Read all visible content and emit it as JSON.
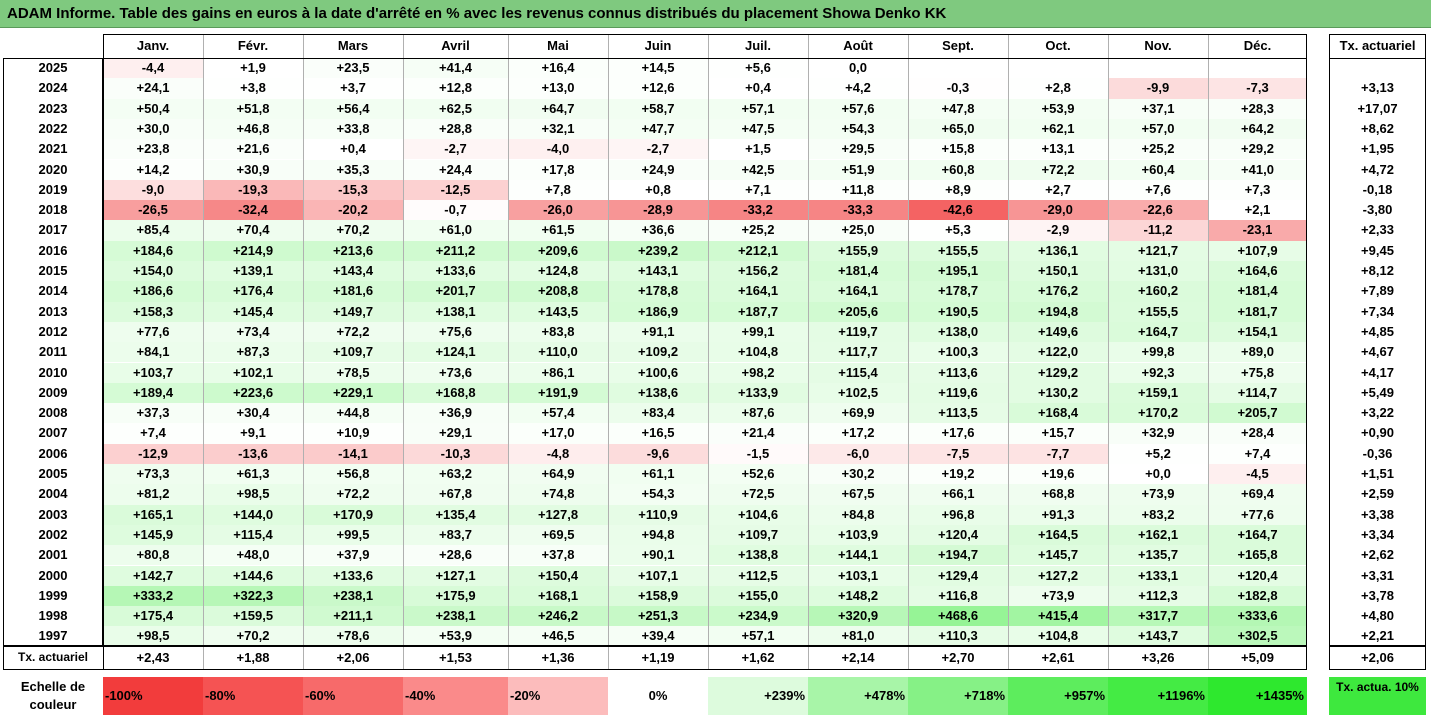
{
  "title": "ADAM Informe. Table des gains en euros à la date d'arrêté en % avec les revenus connus distribués du placement Showa Denko KK",
  "chart_data": {
    "type": "table",
    "months": [
      "Janv.",
      "Févr.",
      "Mars",
      "Avril",
      "Mai",
      "Juin",
      "Juil.",
      "Août",
      "Sept.",
      "Oct.",
      "Nov.",
      "Déc."
    ],
    "last_col_header": "Tx. actuariel",
    "rows": [
      {
        "year": "2025",
        "values": [
          "-4,4",
          "+1,9",
          "+23,5",
          "+41,4",
          "+16,4",
          "+14,5",
          "+5,6",
          "0,0",
          "",
          "",
          "",
          ""
        ],
        "rate": ""
      },
      {
        "year": "2024",
        "values": [
          "+24,1",
          "+3,8",
          "+3,7",
          "+12,8",
          "+13,0",
          "+12,6",
          "+0,4",
          "+4,2",
          "-0,3",
          "+2,8",
          "-9,9",
          "-7,3"
        ],
        "rate": "+3,13"
      },
      {
        "year": "2023",
        "values": [
          "+50,4",
          "+51,8",
          "+56,4",
          "+62,5",
          "+64,7",
          "+58,7",
          "+57,1",
          "+57,6",
          "+47,8",
          "+53,9",
          "+37,1",
          "+28,3"
        ],
        "rate": "+17,07"
      },
      {
        "year": "2022",
        "values": [
          "+30,0",
          "+46,8",
          "+33,8",
          "+28,8",
          "+32,1",
          "+47,7",
          "+47,5",
          "+54,3",
          "+65,0",
          "+62,1",
          "+57,0",
          "+64,2"
        ],
        "rate": "+8,62"
      },
      {
        "year": "2021",
        "values": [
          "+23,8",
          "+21,6",
          "+0,4",
          "-2,7",
          "-4,0",
          "-2,7",
          "+1,5",
          "+29,5",
          "+15,8",
          "+13,1",
          "+25,2",
          "+29,2"
        ],
        "rate": "+1,95"
      },
      {
        "year": "2020",
        "values": [
          "+14,2",
          "+30,9",
          "+35,3",
          "+24,4",
          "+17,8",
          "+24,9",
          "+42,5",
          "+51,9",
          "+60,8",
          "+72,2",
          "+60,4",
          "+41,0"
        ],
        "rate": "+4,72"
      },
      {
        "year": "2019",
        "values": [
          "-9,0",
          "-19,3",
          "-15,3",
          "-12,5",
          "+7,8",
          "+0,8",
          "+7,1",
          "+11,8",
          "+8,9",
          "+2,7",
          "+7,6",
          "+7,3"
        ],
        "rate": "-0,18"
      },
      {
        "year": "2018",
        "values": [
          "-26,5",
          "-32,4",
          "-20,2",
          "-0,7",
          "-26,0",
          "-28,9",
          "-33,2",
          "-33,3",
          "-42,6",
          "-29,0",
          "-22,6",
          "+2,1"
        ],
        "rate": "-3,80"
      },
      {
        "year": "2017",
        "values": [
          "+85,4",
          "+70,4",
          "+70,2",
          "+61,0",
          "+61,5",
          "+36,6",
          "+25,2",
          "+25,0",
          "+5,3",
          "-2,9",
          "-11,2",
          "-23,1"
        ],
        "rate": "+2,33"
      },
      {
        "year": "2016",
        "values": [
          "+184,6",
          "+214,9",
          "+213,6",
          "+211,2",
          "+209,6",
          "+239,2",
          "+212,1",
          "+155,9",
          "+155,5",
          "+136,1",
          "+121,7",
          "+107,9"
        ],
        "rate": "+9,45"
      },
      {
        "year": "2015",
        "values": [
          "+154,0",
          "+139,1",
          "+143,4",
          "+133,6",
          "+124,8",
          "+143,1",
          "+156,2",
          "+181,4",
          "+195,1",
          "+150,1",
          "+131,0",
          "+164,6"
        ],
        "rate": "+8,12"
      },
      {
        "year": "2014",
        "values": [
          "+186,6",
          "+176,4",
          "+181,6",
          "+201,7",
          "+208,8",
          "+178,8",
          "+164,1",
          "+164,1",
          "+178,7",
          "+176,2",
          "+160,2",
          "+181,4"
        ],
        "rate": "+7,89"
      },
      {
        "year": "2013",
        "values": [
          "+158,3",
          "+145,4",
          "+149,7",
          "+138,1",
          "+143,5",
          "+186,9",
          "+187,7",
          "+205,6",
          "+190,5",
          "+194,8",
          "+155,5",
          "+181,7"
        ],
        "rate": "+7,34"
      },
      {
        "year": "2012",
        "values": [
          "+77,6",
          "+73,4",
          "+72,2",
          "+75,6",
          "+83,8",
          "+91,1",
          "+99,1",
          "+119,7",
          "+138,0",
          "+149,6",
          "+164,7",
          "+154,1"
        ],
        "rate": "+4,85"
      },
      {
        "year": "2011",
        "values": [
          "+84,1",
          "+87,3",
          "+109,7",
          "+124,1",
          "+110,0",
          "+109,2",
          "+104,8",
          "+117,7",
          "+100,3",
          "+122,0",
          "+99,8",
          "+89,0"
        ],
        "rate": "+4,67"
      },
      {
        "year": "2010",
        "values": [
          "+103,7",
          "+102,1",
          "+78,5",
          "+73,6",
          "+86,1",
          "+100,6",
          "+98,2",
          "+115,4",
          "+113,6",
          "+129,2",
          "+92,3",
          "+75,8"
        ],
        "rate": "+4,17"
      },
      {
        "year": "2009",
        "values": [
          "+189,4",
          "+223,6",
          "+229,1",
          "+168,8",
          "+191,9",
          "+138,6",
          "+133,9",
          "+102,5",
          "+119,6",
          "+130,2",
          "+159,1",
          "+114,7"
        ],
        "rate": "+5,49"
      },
      {
        "year": "2008",
        "values": [
          "+37,3",
          "+30,4",
          "+44,8",
          "+36,9",
          "+57,4",
          "+83,4",
          "+87,6",
          "+69,9",
          "+113,5",
          "+168,4",
          "+170,2",
          "+205,7"
        ],
        "rate": "+3,22"
      },
      {
        "year": "2007",
        "values": [
          "+7,4",
          "+9,1",
          "+10,9",
          "+29,1",
          "+17,0",
          "+16,5",
          "+21,4",
          "+17,2",
          "+17,6",
          "+15,7",
          "+32,9",
          "+28,4"
        ],
        "rate": "+0,90"
      },
      {
        "year": "2006",
        "values": [
          "-12,9",
          "-13,6",
          "-14,1",
          "-10,3",
          "-4,8",
          "-9,6",
          "-1,5",
          "-6,0",
          "-7,5",
          "-7,7",
          "+5,2",
          "+7,4"
        ],
        "rate": "-0,36"
      },
      {
        "year": "2005",
        "values": [
          "+73,3",
          "+61,3",
          "+56,8",
          "+63,2",
          "+64,9",
          "+61,1",
          "+52,6",
          "+30,2",
          "+19,2",
          "+19,6",
          "+0,0",
          "-4,5"
        ],
        "rate": "+1,51"
      },
      {
        "year": "2004",
        "values": [
          "+81,2",
          "+98,5",
          "+72,2",
          "+67,8",
          "+74,8",
          "+54,3",
          "+72,5",
          "+67,5",
          "+66,1",
          "+68,8",
          "+73,9",
          "+69,4"
        ],
        "rate": "+2,59"
      },
      {
        "year": "2003",
        "values": [
          "+165,1",
          "+144,0",
          "+170,9",
          "+135,4",
          "+127,8",
          "+110,9",
          "+104,6",
          "+84,8",
          "+96,8",
          "+91,3",
          "+83,2",
          "+77,6"
        ],
        "rate": "+3,38"
      },
      {
        "year": "2002",
        "values": [
          "+145,9",
          "+115,4",
          "+99,5",
          "+83,7",
          "+69,5",
          "+94,8",
          "+109,7",
          "+103,9",
          "+120,4",
          "+164,5",
          "+162,1",
          "+164,7"
        ],
        "rate": "+3,34"
      },
      {
        "year": "2001",
        "values": [
          "+80,8",
          "+48,0",
          "+37,9",
          "+28,6",
          "+37,8",
          "+90,1",
          "+138,8",
          "+144,1",
          "+194,7",
          "+145,7",
          "+135,7",
          "+165,8"
        ],
        "rate": "+2,62"
      },
      {
        "year": "2000",
        "values": [
          "+142,7",
          "+144,6",
          "+133,6",
          "+127,1",
          "+150,4",
          "+107,1",
          "+112,5",
          "+103,1",
          "+129,4",
          "+127,2",
          "+133,1",
          "+120,4"
        ],
        "rate": "+3,31"
      },
      {
        "year": "1999",
        "values": [
          "+333,2",
          "+322,3",
          "+238,1",
          "+175,9",
          "+168,1",
          "+158,9",
          "+155,0",
          "+148,2",
          "+116,8",
          "+73,9",
          "+112,3",
          "+182,8"
        ],
        "rate": "+3,78"
      },
      {
        "year": "1998",
        "values": [
          "+175,4",
          "+159,5",
          "+211,1",
          "+238,1",
          "+246,2",
          "+251,3",
          "+234,9",
          "+320,9",
          "+468,6",
          "+415,4",
          "+317,7",
          "+333,6"
        ],
        "rate": "+4,80"
      },
      {
        "year": "1997",
        "values": [
          "+98,5",
          "+70,2",
          "+78,6",
          "+53,9",
          "+46,5",
          "+39,4",
          "+57,1",
          "+81,0",
          "+110,3",
          "+104,8",
          "+143,7",
          "+302,5"
        ],
        "rate": "+2,21"
      }
    ],
    "footer": {
      "label": "Tx. actuariel",
      "values": [
        "+2,43",
        "+1,88",
        "+2,06",
        "+1,53",
        "+1,36",
        "+1,19",
        "+1,62",
        "+2,14",
        "+2,70",
        "+2,61",
        "+3,26",
        "+5,09"
      ],
      "overall": "+2,06"
    },
    "color_scale": {
      "label": "Echelle de couleur",
      "stops": [
        {
          "label": "-100%",
          "color": "#f23c3c"
        },
        {
          "label": "-80%",
          "color": "#f55353"
        },
        {
          "label": "-60%",
          "color": "#f76a6a"
        },
        {
          "label": "-40%",
          "color": "#fa8a8a"
        },
        {
          "label": "-20%",
          "color": "#fcbcbc"
        },
        {
          "label": "0%",
          "color": "#ffffff"
        },
        {
          "label": "+239%",
          "color": "#ddfbdd"
        },
        {
          "label": "+478%",
          "color": "#a8f5a8"
        },
        {
          "label": "+718%",
          "color": "#86f186"
        },
        {
          "label": "+957%",
          "color": "#5ded5d"
        },
        {
          "label": "+1196%",
          "color": "#44eb44"
        },
        {
          "label": "+1435%",
          "color": "#2ee82e"
        }
      ],
      "rate_swatch": {
        "label": "Tx. actua. 10%",
        "color": "#3ee83e"
      }
    }
  }
}
